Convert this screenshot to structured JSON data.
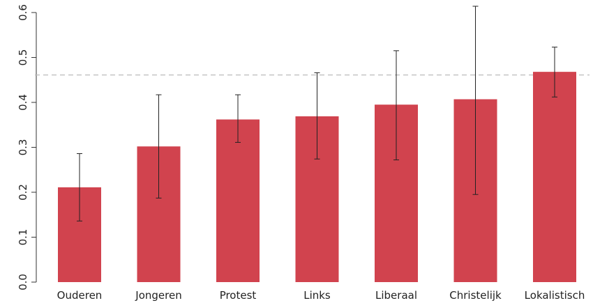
{
  "chart_data": {
    "type": "bar",
    "categories": [
      "Ouderen",
      "Jongeren",
      "Protest",
      "Links",
      "Liberaal",
      "Christelijk",
      "Lokalistisch"
    ],
    "values": [
      0.211,
      0.302,
      0.362,
      0.369,
      0.395,
      0.407,
      0.468
    ],
    "error_low": [
      0.136,
      0.187,
      0.311,
      0.274,
      0.272,
      0.195,
      0.412
    ],
    "error_high": [
      0.286,
      0.417,
      0.417,
      0.466,
      0.515,
      0.614,
      0.523
    ],
    "reference_line": 0.461,
    "ylim": [
      0,
      0.6
    ],
    "yticks": [
      0.0,
      0.1,
      0.2,
      0.3,
      0.4,
      0.5,
      0.6
    ],
    "ytick_labels": [
      "0.0",
      "0.1",
      "0.2",
      "0.3",
      "0.4",
      "0.5",
      "0.6"
    ],
    "title": "",
    "xlabel": "",
    "ylabel": "",
    "grid": false,
    "colors": {
      "bar": "#d1434e",
      "error_bar": "#222222",
      "reference_line": "#bbbbbb",
      "axis": "#333333"
    }
  }
}
